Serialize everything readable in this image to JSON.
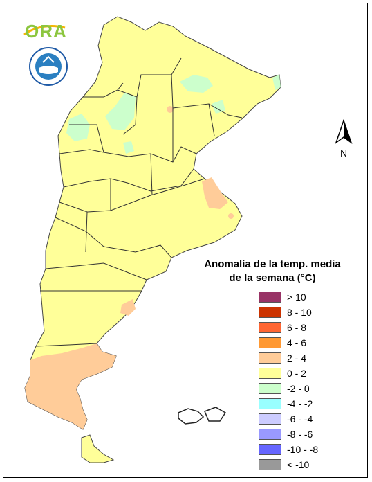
{
  "logo": {
    "text": "ORA"
  },
  "seal": {
    "icon": "smn-seal-icon"
  },
  "compass": {
    "label": "N"
  },
  "legend": {
    "title_line1": "Anomalía de la temp. media",
    "title_line2": "de la semana (°C)",
    "items": [
      {
        "label": "> 10",
        "color": "#993366"
      },
      {
        "label": "8 - 10",
        "color": "#cc3300"
      },
      {
        "label": "6 - 8",
        "color": "#ff6633"
      },
      {
        "label": "4 - 6",
        "color": "#ff9933"
      },
      {
        "label": "2 - 4",
        "color": "#ffcc99"
      },
      {
        "label": "0 - 2",
        "color": "#ffff99"
      },
      {
        "label": "-2 - 0",
        "color": "#ccffcc"
      },
      {
        "label": "-4 - -2",
        "color": "#99ffff"
      },
      {
        "label": "-6 - -4",
        "color": "#ccccff"
      },
      {
        "label": "-8 - -6",
        "color": "#9999ff"
      },
      {
        "label": "-10 - -8",
        "color": "#6666ff"
      },
      {
        "label": "< -10",
        "color": "#999999"
      }
    ]
  },
  "map_colors": {
    "land": "#ffff99",
    "warm_anomaly": "#ffcc99",
    "cool_anomaly": "#ccffcc"
  }
}
